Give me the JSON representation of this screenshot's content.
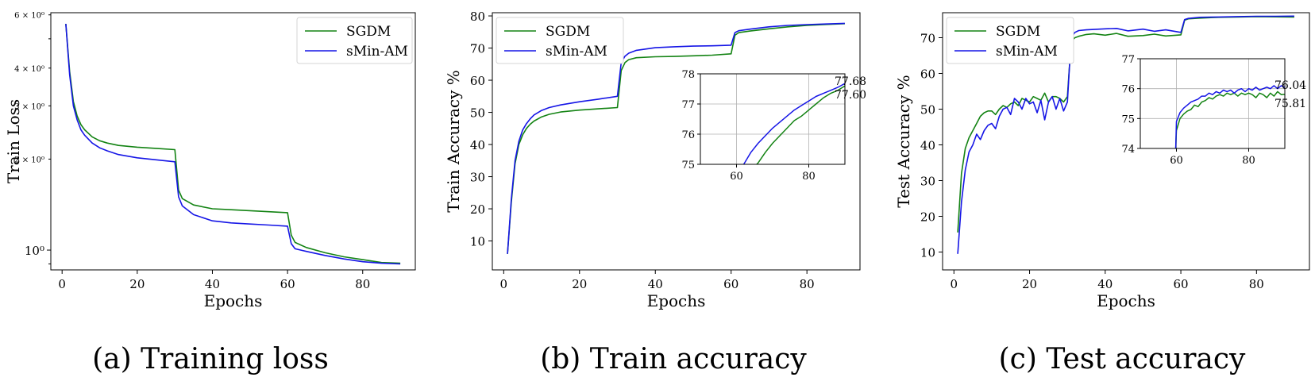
{
  "colors": {
    "SGDM": "#138313",
    "sMin-AM": "#1515e6",
    "grid": "#b0b0b0"
  },
  "chart_data": [
    {
      "type": "line",
      "caption": "(a)  Training loss",
      "xlabel": "Epochs",
      "ylabel": "Train Loss",
      "yscale": "log",
      "xlim": [
        -3,
        94
      ],
      "ylim": [
        0.86,
        6.1
      ],
      "xticks": [
        0,
        20,
        40,
        60,
        80
      ],
      "yticks": [
        {
          "value": 1.0,
          "label": "10⁰",
          "size": "large"
        },
        {
          "value": 2.0,
          "label": "2 × 10⁰",
          "size": "small"
        },
        {
          "value": 3.0,
          "label": "3 × 10⁰",
          "size": "small"
        },
        {
          "value": 4.0,
          "label": "4 × 10⁰",
          "size": "small"
        },
        {
          "value": 6.0,
          "label": "6 × 10⁰",
          "size": "small"
        }
      ],
      "legend": "top-right",
      "grid": false,
      "series": [
        {
          "name": "SGDM",
          "x": [
            1,
            2,
            3,
            4,
            5,
            6,
            8,
            10,
            12,
            15,
            20,
            25,
            30,
            31,
            32,
            35,
            40,
            45,
            50,
            55,
            60,
            61,
            62,
            65,
            70,
            75,
            80,
            85,
            90
          ],
          "y": [
            5.6,
            3.9,
            3.1,
            2.78,
            2.6,
            2.5,
            2.37,
            2.3,
            2.26,
            2.22,
            2.19,
            2.17,
            2.15,
            1.58,
            1.48,
            1.41,
            1.37,
            1.36,
            1.35,
            1.34,
            1.33,
            1.12,
            1.06,
            1.02,
            0.98,
            0.95,
            0.93,
            0.91,
            0.905
          ]
        },
        {
          "name": "sMin-AM",
          "x": [
            1,
            2,
            3,
            4,
            5,
            6,
            8,
            10,
            12,
            15,
            20,
            25,
            30,
            31,
            32,
            35,
            40,
            45,
            50,
            55,
            60,
            61,
            62,
            65,
            70,
            75,
            80,
            85,
            90
          ],
          "y": [
            5.6,
            3.8,
            3.0,
            2.7,
            2.5,
            2.4,
            2.26,
            2.18,
            2.13,
            2.07,
            2.02,
            1.99,
            1.96,
            1.5,
            1.4,
            1.31,
            1.25,
            1.23,
            1.22,
            1.21,
            1.2,
            1.05,
            1.01,
            0.99,
            0.96,
            0.935,
            0.915,
            0.905,
            0.9
          ]
        }
      ]
    },
    {
      "type": "line",
      "caption": "(b)  Train accuracy",
      "xlabel": "Epochs",
      "ylabel": "Train Accuracy %",
      "xlim": [
        -3,
        94
      ],
      "ylim": [
        1,
        81
      ],
      "xticks": [
        0,
        20,
        40,
        60,
        80
      ],
      "yticks": [
        10,
        20,
        30,
        40,
        50,
        60,
        70,
        80
      ],
      "legend": "top-left",
      "grid": false,
      "series": [
        {
          "name": "SGDM",
          "x": [
            1,
            2,
            3,
            4,
            5,
            6,
            7,
            8,
            10,
            12,
            15,
            20,
            25,
            30,
            31,
            32,
            33,
            35,
            40,
            45,
            50,
            55,
            60,
            61,
            62,
            65,
            70,
            75,
            80,
            85,
            90
          ],
          "y": [
            6,
            22,
            34,
            40,
            43,
            45,
            46.3,
            47.3,
            48.6,
            49.4,
            50.1,
            50.7,
            51.1,
            51.5,
            63,
            65.5,
            66.4,
            67,
            67.3,
            67.4,
            67.6,
            67.8,
            68.2,
            74,
            74.8,
            75.3,
            76,
            76.6,
            77.05,
            77.35,
            77.6
          ]
        },
        {
          "name": "sMin-AM",
          "x": [
            1,
            2,
            3,
            4,
            5,
            6,
            7,
            8,
            10,
            12,
            15,
            20,
            25,
            30,
            31,
            32,
            33,
            35,
            40,
            45,
            50,
            55,
            60,
            61,
            62,
            65,
            70,
            75,
            80,
            85,
            90
          ],
          "y": [
            6,
            23,
            35,
            41,
            44.5,
            46.5,
            48,
            49.2,
            50.6,
            51.5,
            52.3,
            53.3,
            54.1,
            55,
            65.5,
            67.5,
            68.4,
            69.3,
            70.1,
            70.4,
            70.6,
            70.7,
            70.9,
            74.8,
            75.4,
            75.9,
            76.6,
            77.05,
            77.3,
            77.5,
            77.68
          ]
        }
      ],
      "inset": {
        "xlim": [
          50,
          90
        ],
        "ylim": [
          75,
          78
        ],
        "xticks": [
          60,
          80
        ],
        "yticks": [
          75,
          76,
          77,
          78
        ],
        "grid": true,
        "x": [
          60,
          62,
          64,
          66,
          68,
          70,
          72,
          74,
          76,
          78,
          80,
          82,
          84,
          86,
          88,
          90
        ],
        "SGDM": [
          73.8,
          74.4,
          74.8,
          75.05,
          75.4,
          75.7,
          75.95,
          76.2,
          76.45,
          76.6,
          76.8,
          77.0,
          77.2,
          77.35,
          77.45,
          77.6
        ],
        "sMin-AM": [
          74.5,
          75.0,
          75.4,
          75.7,
          75.95,
          76.2,
          76.4,
          76.6,
          76.8,
          76.95,
          77.1,
          77.25,
          77.35,
          77.45,
          77.55,
          77.68
        ],
        "annotations": [
          "77.68",
          "77.60"
        ]
      }
    },
    {
      "type": "line",
      "caption": "(c)  Test accuracy",
      "xlabel": "Epochs",
      "ylabel": "Test Accuracy %",
      "xlim": [
        -3,
        94
      ],
      "ylim": [
        5,
        77
      ],
      "xticks": [
        0,
        20,
        40,
        60,
        80
      ],
      "yticks": [
        10,
        20,
        30,
        40,
        50,
        60,
        70
      ],
      "legend": "top-left",
      "grid": false,
      "series": [
        {
          "name": "SGDM",
          "x": [
            1,
            2,
            3,
            4,
            5,
            6,
            7,
            8,
            9,
            10,
            11,
            12,
            13,
            14,
            15,
            16,
            17,
            18,
            19,
            20,
            21,
            22,
            23,
            24,
            25,
            26,
            27,
            28,
            29,
            30,
            31,
            32,
            33,
            35,
            37,
            40,
            43,
            46,
            50,
            53,
            56,
            60,
            61,
            62,
            65,
            70,
            75,
            80,
            85,
            90
          ],
          "y": [
            15.5,
            32,
            39,
            42,
            44,
            46,
            48,
            49,
            49.5,
            49.5,
            48.5,
            50,
            51,
            50.5,
            51.5,
            52,
            51,
            53,
            52.5,
            52,
            53.5,
            53,
            52.5,
            54.5,
            52,
            53.5,
            53.5,
            53,
            52,
            53.5,
            69,
            70,
            70.4,
            70.9,
            71.1,
            70.7,
            71.2,
            70.4,
            70.6,
            71,
            70.5,
            70.8,
            74.9,
            75.3,
            75.5,
            75.7,
            75.8,
            75.9,
            75.85,
            75.81
          ]
        },
        {
          "name": "sMin-AM",
          "x": [
            1,
            2,
            3,
            4,
            5,
            6,
            7,
            8,
            9,
            10,
            11,
            12,
            13,
            14,
            15,
            16,
            17,
            18,
            19,
            20,
            21,
            22,
            23,
            24,
            25,
            26,
            27,
            28,
            29,
            30,
            31,
            32,
            33,
            35,
            37,
            40,
            43,
            46,
            50,
            53,
            56,
            60,
            61,
            62,
            65,
            70,
            75,
            80,
            85,
            90
          ],
          "y": [
            9.5,
            24,
            33,
            38,
            40,
            43,
            41.5,
            44,
            45.5,
            46,
            44.5,
            48,
            50,
            50.5,
            48.5,
            53,
            52,
            50,
            53,
            51.5,
            52,
            49,
            52.5,
            47,
            52,
            53.5,
            50,
            53,
            49.5,
            52,
            70,
            71.5,
            72,
            72.2,
            72.3,
            72.5,
            72.6,
            71.9,
            72.4,
            71.8,
            72.2,
            71.5,
            75.1,
            75.4,
            75.7,
            75.8,
            75.9,
            76,
            76,
            76.04
          ]
        }
      ],
      "inset": {
        "xlim": [
          50,
          90
        ],
        "ylim": [
          74,
          77
        ],
        "xticks": [
          60,
          80
        ],
        "yticks": [
          74,
          75,
          76,
          77
        ],
        "grid": true,
        "x": [
          59.8,
          60,
          61,
          62,
          63,
          64,
          65,
          66,
          67,
          68,
          69,
          70,
          71,
          72,
          73,
          74,
          75,
          76,
          77,
          78,
          79,
          80,
          81,
          82,
          83,
          84,
          85,
          86,
          87,
          88,
          89,
          90
        ],
        "SGDM": [
          74,
          74.6,
          75.0,
          75.15,
          75.25,
          75.3,
          75.45,
          75.4,
          75.55,
          75.6,
          75.7,
          75.65,
          75.75,
          75.8,
          75.75,
          75.85,
          75.8,
          75.85,
          75.75,
          75.85,
          75.8,
          75.85,
          75.8,
          75.7,
          75.85,
          75.8,
          75.7,
          75.85,
          75.75,
          75.9,
          75.8,
          75.81
        ],
        "sMin-AM": [
          74,
          74.9,
          75.2,
          75.35,
          75.45,
          75.55,
          75.6,
          75.65,
          75.75,
          75.75,
          75.85,
          75.8,
          75.9,
          75.85,
          75.95,
          75.9,
          75.95,
          75.85,
          75.95,
          76.0,
          75.9,
          76.0,
          75.95,
          76.05,
          75.95,
          76.0,
          76.05,
          76.0,
          76.1,
          76.0,
          76.1,
          76.04
        ],
        "annotations": [
          "76.04",
          "75.81"
        ]
      }
    }
  ]
}
